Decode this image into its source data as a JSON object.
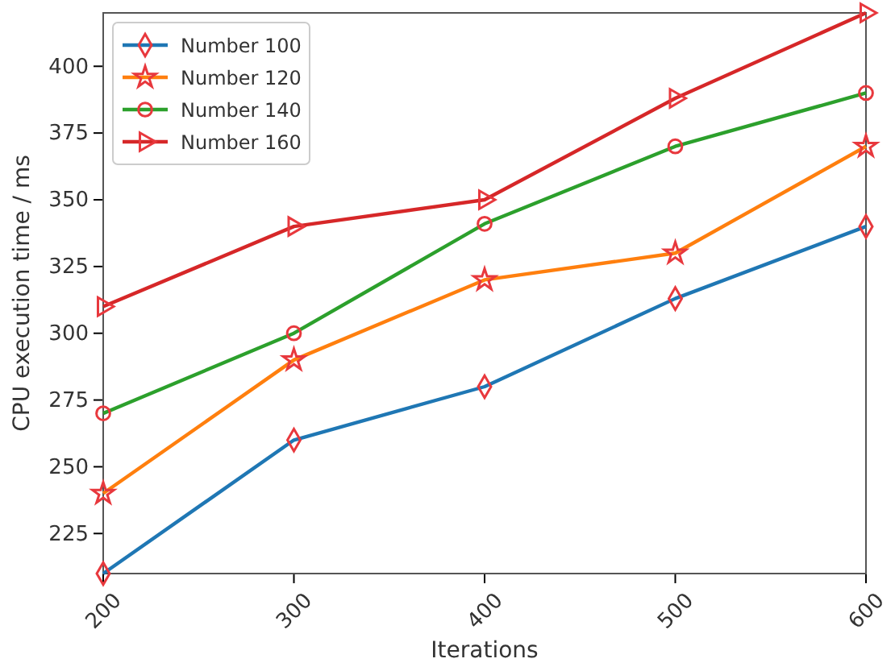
{
  "chart_data": {
    "type": "line",
    "xlabel": "Iterations",
    "ylabel": "CPU execution time / ms",
    "x": [
      200,
      300,
      400,
      500,
      600
    ],
    "xlim": [
      200,
      600
    ],
    "xticks": [
      200,
      300,
      400,
      500,
      600
    ],
    "ylim": [
      210,
      420
    ],
    "yticks": [
      225,
      250,
      275,
      300,
      325,
      350,
      375,
      400
    ],
    "grid": false,
    "legend": "top left",
    "series": [
      {
        "name": "Number 100",
        "color": "#1f77b4",
        "marker": "diamond",
        "values": [
          210,
          260,
          280,
          313,
          340
        ]
      },
      {
        "name": "Number 120",
        "color": "#ff7f0e",
        "marker": "star",
        "values": [
          240,
          290,
          320,
          330,
          370
        ]
      },
      {
        "name": "Number 140",
        "color": "#2ca02c",
        "marker": "circle",
        "values": [
          270,
          300,
          341,
          370,
          390
        ]
      },
      {
        "name": "Number 160",
        "color": "#d62728",
        "marker": "triangle",
        "values": [
          310,
          340,
          350,
          388,
          420
        ]
      }
    ]
  }
}
